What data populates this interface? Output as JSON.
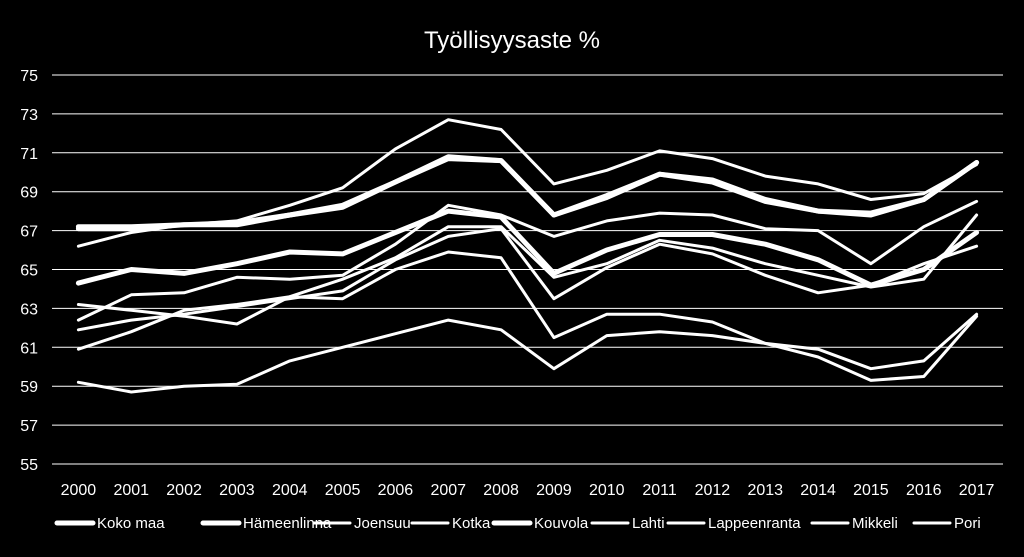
{
  "chart_data": {
    "type": "line",
    "title": "Työllisyysaste %",
    "x": [
      "2000",
      "2001",
      "2002",
      "2003",
      "2004",
      "2005",
      "2006",
      "2007",
      "2008",
      "2009",
      "2010",
      "2011",
      "2012",
      "2013",
      "2014",
      "2015",
      "2016",
      "2017"
    ],
    "ylim": [
      55,
      75
    ],
    "yticks": [
      55,
      57,
      59,
      61,
      63,
      65,
      67,
      69,
      71,
      73,
      75
    ],
    "grid": true,
    "legend_position": "bottom",
    "line_color": "#ffffff",
    "background": "#000000",
    "series": [
      {
        "name": "Koko maa",
        "values": [
          67.2,
          67.2,
          67.3,
          67.4,
          67.8,
          68.3,
          69.5,
          70.8,
          70.6,
          67.8,
          68.7,
          69.9,
          69.5,
          68.5,
          68.0,
          67.8,
          68.6,
          70.5
        ],
        "weight": "bold"
      },
      {
        "name": "Hämeenlinna",
        "values": [
          64.3,
          65.0,
          64.8,
          65.3,
          65.9,
          65.8,
          66.9,
          68.0,
          67.7,
          64.8,
          66.0,
          66.8,
          66.8,
          66.3,
          65.5,
          64.2,
          65.0,
          66.9
        ],
        "weight": "bold"
      },
      {
        "name": "Joensuu",
        "values": [
          59.2,
          58.7,
          59.0,
          59.1,
          60.3,
          61.0,
          61.7,
          62.4,
          61.9,
          59.9,
          61.6,
          61.8,
          61.6,
          61.2,
          60.5,
          59.3,
          59.5,
          62.6
        ],
        "weight": "normal"
      },
      {
        "name": "Kotka",
        "values": [
          63.2,
          62.9,
          62.6,
          62.2,
          63.6,
          63.5,
          65.0,
          65.9,
          65.6,
          61.5,
          62.7,
          62.7,
          62.3,
          61.2,
          60.9,
          59.9,
          60.3,
          62.7
        ],
        "weight": "normal"
      },
      {
        "name": "Kouvola",
        "values": [
          67.1,
          67.1,
          67.3,
          67.3,
          67.8,
          68.2,
          69.5,
          70.7,
          70.6,
          67.8,
          68.8,
          69.9,
          69.6,
          68.6,
          68.0,
          67.9,
          68.6,
          70.5
        ],
        "weight": "bold"
      },
      {
        "name": "Lahti",
        "values": [
          61.9,
          62.4,
          62.7,
          63.1,
          63.5,
          63.9,
          65.5,
          66.7,
          67.1,
          63.5,
          65.1,
          66.3,
          65.8,
          64.7,
          63.8,
          64.2,
          65.3,
          66.2
        ],
        "weight": "normal"
      },
      {
        "name": "Lappeenranta",
        "values": [
          60.9,
          61.8,
          62.9,
          63.2,
          63.6,
          64.5,
          65.6,
          67.2,
          67.2,
          64.6,
          65.3,
          66.5,
          66.1,
          65.3,
          64.7,
          64.1,
          64.5,
          67.8
        ],
        "weight": "normal"
      },
      {
        "name": "Mikkeli",
        "values": [
          66.2,
          66.9,
          67.3,
          67.5,
          68.3,
          69.2,
          71.2,
          72.7,
          72.2,
          69.4,
          70.1,
          71.1,
          70.7,
          69.8,
          69.4,
          68.6,
          68.9,
          70.4
        ],
        "weight": "normal"
      },
      {
        "name": "Pori",
        "values": [
          62.4,
          63.7,
          63.8,
          64.6,
          64.5,
          64.7,
          66.3,
          68.3,
          67.8,
          66.7,
          67.5,
          67.9,
          67.8,
          67.1,
          67.0,
          65.3,
          67.2,
          68.5
        ],
        "weight": "normal"
      }
    ]
  }
}
